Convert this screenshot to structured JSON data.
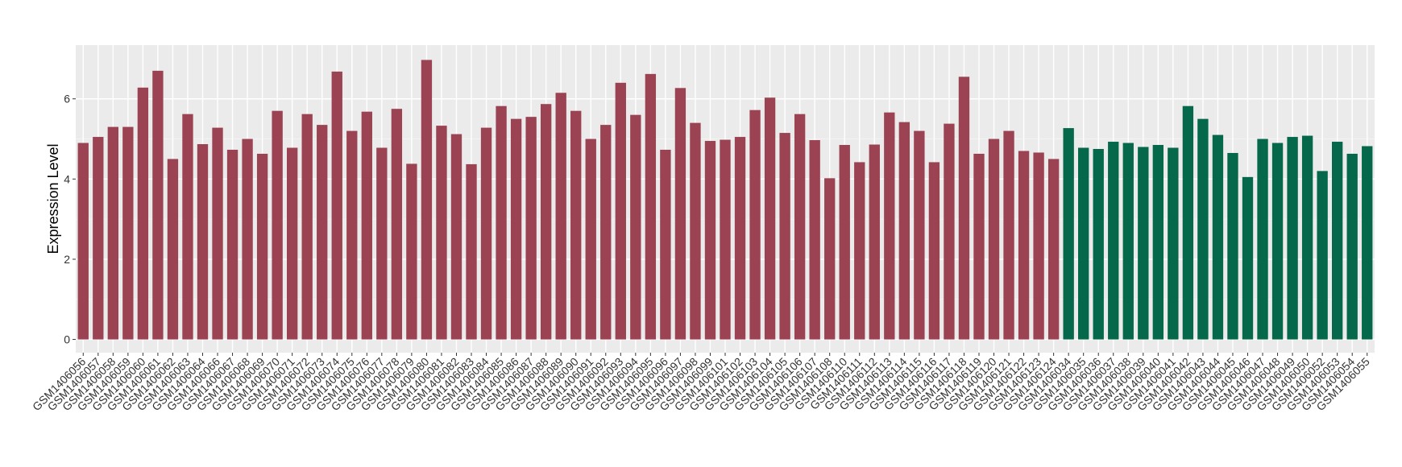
{
  "chart_data": {
    "type": "bar",
    "y_label": "Expression Level",
    "categories": [
      "GSM1406056",
      "GSM1406057",
      "GSM1406058",
      "GSM1406059",
      "GSM1406060",
      "GSM1406061",
      "GSM1406062",
      "GSM1406063",
      "GSM1406064",
      "GSM1406066",
      "GSM1406067",
      "GSM1406068",
      "GSM1406069",
      "GSM1406070",
      "GSM1406071",
      "GSM1406072",
      "GSM1406073",
      "GSM1406074",
      "GSM1406075",
      "GSM1406076",
      "GSM1406077",
      "GSM1406078",
      "GSM1406079",
      "GSM1406080",
      "GSM1406081",
      "GSM1406082",
      "GSM1406083",
      "GSM1406084",
      "GSM1406085",
      "GSM1406086",
      "GSM1406087",
      "GSM1406088",
      "GSM1406089",
      "GSM1406090",
      "GSM1406091",
      "GSM1406092",
      "GSM1406093",
      "GSM1406094",
      "GSM1406095",
      "GSM1406096",
      "GSM1406097",
      "GSM1406098",
      "GSM1406099",
      "GSM1406101",
      "GSM1406102",
      "GSM1406103",
      "GSM1406104",
      "GSM1406105",
      "GSM1406106",
      "GSM1406107",
      "GSM1406108",
      "GSM1406110",
      "GSM1406111",
      "GSM1406112",
      "GSM1406113",
      "GSM1406114",
      "GSM1406115",
      "GSM1406116",
      "GSM1406117",
      "GSM1406118",
      "GSM1406119",
      "GSM1406120",
      "GSM1406121",
      "GSM1406122",
      "GSM1406123",
      "GSM1406124",
      "GSM1406034",
      "GSM1406035",
      "GSM1406036",
      "GSM1406037",
      "GSM1406038",
      "GSM1406039",
      "GSM1406040",
      "GSM1406041",
      "GSM1406042",
      "GSM1406043",
      "GSM1406044",
      "GSM1406045",
      "GSM1406046",
      "GSM1406047",
      "GSM1406048",
      "GSM1406049",
      "GSM1406050",
      "GSM1406052",
      "GSM1406053",
      "GSM1406054",
      "GSM1406055"
    ],
    "values": [
      4.9,
      5.05,
      5.3,
      5.3,
      6.28,
      6.7,
      4.5,
      5.62,
      4.87,
      5.28,
      4.73,
      5.0,
      4.63,
      5.7,
      4.78,
      5.62,
      5.35,
      6.68,
      5.2,
      5.68,
      4.78,
      5.75,
      4.38,
      6.97,
      5.33,
      5.12,
      4.37,
      5.28,
      5.82,
      5.5,
      5.55,
      5.87,
      6.15,
      5.7,
      5.0,
      5.35,
      6.4,
      5.6,
      6.62,
      4.73,
      6.27,
      5.4,
      4.95,
      4.98,
      5.05,
      5.72,
      6.03,
      5.15,
      5.62,
      4.97,
      4.02,
      4.85,
      4.42,
      4.86,
      5.66,
      5.42,
      5.2,
      4.42,
      5.38,
      6.55,
      4.63,
      5.0,
      5.2,
      4.7,
      4.66,
      4.5,
      5.27,
      4.78,
      4.75,
      4.93,
      4.9,
      4.8,
      4.85,
      4.78,
      5.82,
      5.5,
      5.1,
      4.65,
      4.05,
      5.0,
      4.9,
      5.05,
      5.08,
      4.2,
      4.93,
      4.63,
      4.82
    ],
    "colors": [
      "#9b4352",
      "#9b4352",
      "#9b4352",
      "#9b4352",
      "#9b4352",
      "#9b4352",
      "#9b4352",
      "#9b4352",
      "#9b4352",
      "#9b4352",
      "#9b4352",
      "#9b4352",
      "#9b4352",
      "#9b4352",
      "#9b4352",
      "#9b4352",
      "#9b4352",
      "#9b4352",
      "#9b4352",
      "#9b4352",
      "#9b4352",
      "#9b4352",
      "#9b4352",
      "#9b4352",
      "#9b4352",
      "#9b4352",
      "#9b4352",
      "#9b4352",
      "#9b4352",
      "#9b4352",
      "#9b4352",
      "#9b4352",
      "#9b4352",
      "#9b4352",
      "#9b4352",
      "#9b4352",
      "#9b4352",
      "#9b4352",
      "#9b4352",
      "#9b4352",
      "#9b4352",
      "#9b4352",
      "#9b4352",
      "#9b4352",
      "#9b4352",
      "#9b4352",
      "#9b4352",
      "#9b4352",
      "#9b4352",
      "#9b4352",
      "#9b4352",
      "#9b4352",
      "#9b4352",
      "#9b4352",
      "#9b4352",
      "#9b4352",
      "#9b4352",
      "#9b4352",
      "#9b4352",
      "#9b4352",
      "#9b4352",
      "#9b4352",
      "#9b4352",
      "#9b4352",
      "#9b4352",
      "#9b4352",
      "#05684a",
      "#05684a",
      "#05684a",
      "#05684a",
      "#05684a",
      "#05684a",
      "#05684a",
      "#05684a",
      "#05684a",
      "#05684a",
      "#05684a",
      "#05684a",
      "#05684a",
      "#05684a",
      "#05684a",
      "#05684a",
      "#05684a",
      "#05684a",
      "#05684a",
      "#05684a",
      "#05684a"
    ],
    "ylim": [
      -0.33,
      7.34
    ],
    "yticks": [
      0,
      2,
      4,
      6
    ],
    "grid": true
  }
}
